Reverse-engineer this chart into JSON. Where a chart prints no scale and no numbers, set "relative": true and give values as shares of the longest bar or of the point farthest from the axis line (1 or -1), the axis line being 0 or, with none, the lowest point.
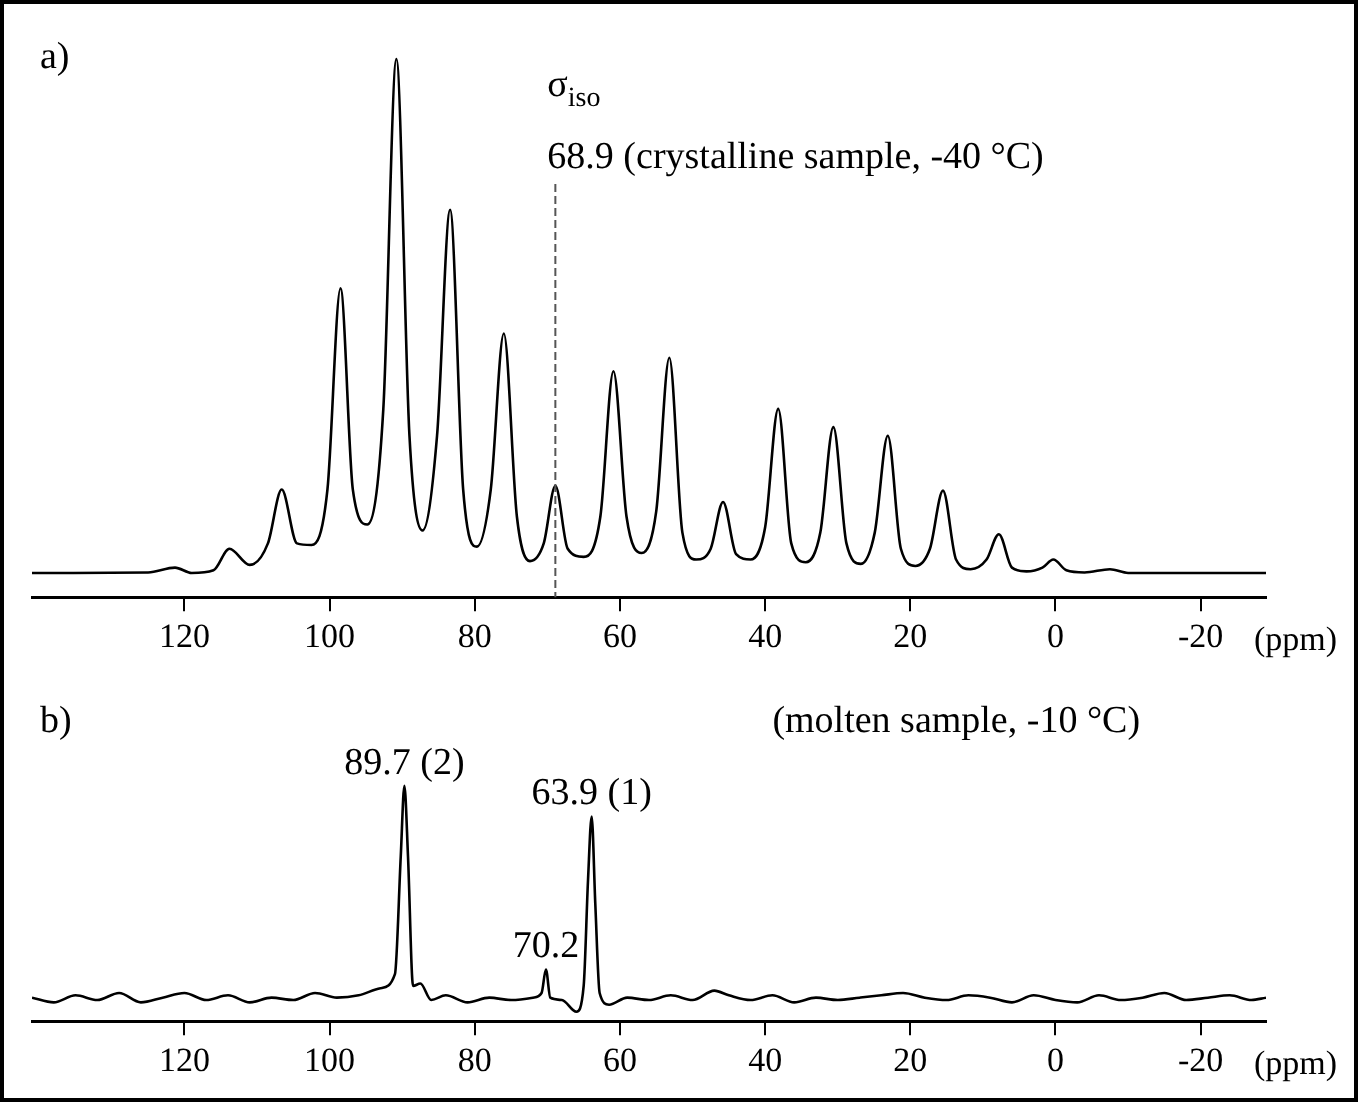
{
  "chart_data": [
    {
      "type": "line",
      "relative": true,
      "color": "#000000",
      "marker": "none",
      "grid": false,
      "xlabel": "(ppm)",
      "xlim": [
        141,
        -29
      ],
      "xticks": [
        120,
        100,
        80,
        60,
        40,
        20,
        0,
        -20
      ],
      "annotations": [
        "a)",
        "σ$_{iso}$",
        "68.9 (crystalline sample, -40 °C)"
      ],
      "ref_lines": [
        {
          "axis": "x",
          "value": 68.9,
          "label": null,
          "color": "#555555",
          "line_style": "dashed"
        }
      ],
      "x": [
        141,
        125,
        121.3,
        119,
        116,
        113.8,
        111,
        108.5,
        106.6,
        104.5,
        102.5,
        100.3,
        98.5,
        96.8,
        94.8,
        92.6,
        90.8,
        89,
        87.2,
        85.2,
        83.4,
        81.6,
        79.7,
        77.8,
        76,
        74.2,
        72.4,
        70.5,
        68.9,
        67.2,
        65,
        62.7,
        60.9,
        59.1,
        57,
        55,
        53.2,
        51.4,
        49.5,
        47.5,
        45.8,
        44,
        42,
        40,
        38.2,
        36.4,
        34.4,
        32.4,
        30.6,
        28.8,
        26.8,
        24.9,
        23.1,
        21.3,
        19.3,
        17.3,
        15.5,
        13.7,
        11.7,
        9.5,
        7.8,
        6,
        4,
        1.8,
        0.3,
        -1.5,
        -4,
        -7.5,
        -10,
        -29
      ],
      "values": [
        0.045,
        0.046,
        0.055,
        0.045,
        0.05,
        0.09,
        0.06,
        0.1,
        0.2,
        0.1,
        0.097,
        0.2,
        0.574,
        0.2,
        0.135,
        0.35,
        1,
        0.3,
        0.124,
        0.3,
        0.72,
        0.2,
        0.094,
        0.2,
        0.49,
        0.15,
        0.067,
        0.1,
        0.207,
        0.09,
        0.075,
        0.15,
        0.42,
        0.15,
        0.082,
        0.16,
        0.445,
        0.12,
        0.07,
        0.09,
        0.177,
        0.08,
        0.07,
        0.13,
        0.35,
        0.1,
        0.065,
        0.12,
        0.316,
        0.1,
        0.062,
        0.12,
        0.3,
        0.09,
        0.058,
        0.09,
        0.198,
        0.07,
        0.052,
        0.07,
        0.117,
        0.055,
        0.048,
        0.055,
        0.07,
        0.05,
        0.046,
        0.052,
        0.045,
        0.045
      ]
    },
    {
      "type": "line",
      "relative": true,
      "color": "#000000",
      "marker": "none",
      "grid": false,
      "xlabel": "(ppm)",
      "xlim": [
        141,
        -29
      ],
      "xticks": [
        120,
        100,
        80,
        60,
        40,
        20,
        0,
        -20
      ],
      "annotations": [
        "b)",
        "(molten sample, -10 °C)",
        {
          "text": "89.7 (2)",
          "x": 89.7,
          "y": 1
        },
        {
          "text": "70.2",
          "x": 70.2,
          "y": 0.22
        },
        {
          "text": "63.9 (1)",
          "x": 63.9,
          "y": 0.87
        }
      ],
      "x": [
        141,
        138,
        135,
        132,
        129,
        126,
        123,
        120,
        117,
        114,
        111,
        108,
        105,
        102,
        99,
        96,
        93,
        91,
        90.2,
        89.7,
        89.2,
        88.5,
        87.5,
        86,
        84,
        81,
        78,
        75,
        72,
        70.8,
        70.2,
        69.6,
        68,
        66,
        65,
        64.4,
        63.9,
        63.4,
        62.8,
        61.5,
        59,
        56,
        53,
        50,
        47,
        45,
        42,
        39,
        36,
        33,
        30,
        27,
        24,
        21,
        18,
        15,
        12,
        9,
        6,
        3,
        0,
        -3,
        -6,
        -9,
        -12,
        -15,
        -18,
        -21,
        -24,
        -27,
        -29
      ],
      "values": [
        0.1,
        0.08,
        0.11,
        0.09,
        0.12,
        0.08,
        0.1,
        0.12,
        0.09,
        0.11,
        0.08,
        0.1,
        0.09,
        0.12,
        0.1,
        0.11,
        0.14,
        0.2,
        0.7,
        1,
        0.7,
        0.15,
        0.16,
        0.09,
        0.11,
        0.08,
        0.1,
        0.09,
        0.1,
        0.12,
        0.22,
        0.1,
        0.09,
        0.04,
        0.15,
        0.6,
        0.87,
        0.5,
        0.12,
        0.07,
        0.1,
        0.09,
        0.11,
        0.09,
        0.13,
        0.11,
        0.09,
        0.11,
        0.08,
        0.1,
        0.09,
        0.1,
        0.11,
        0.12,
        0.1,
        0.09,
        0.11,
        0.1,
        0.08,
        0.11,
        0.09,
        0.08,
        0.11,
        0.09,
        0.1,
        0.12,
        0.09,
        0.1,
        0.11,
        0.09,
        0.1
      ]
    }
  ]
}
